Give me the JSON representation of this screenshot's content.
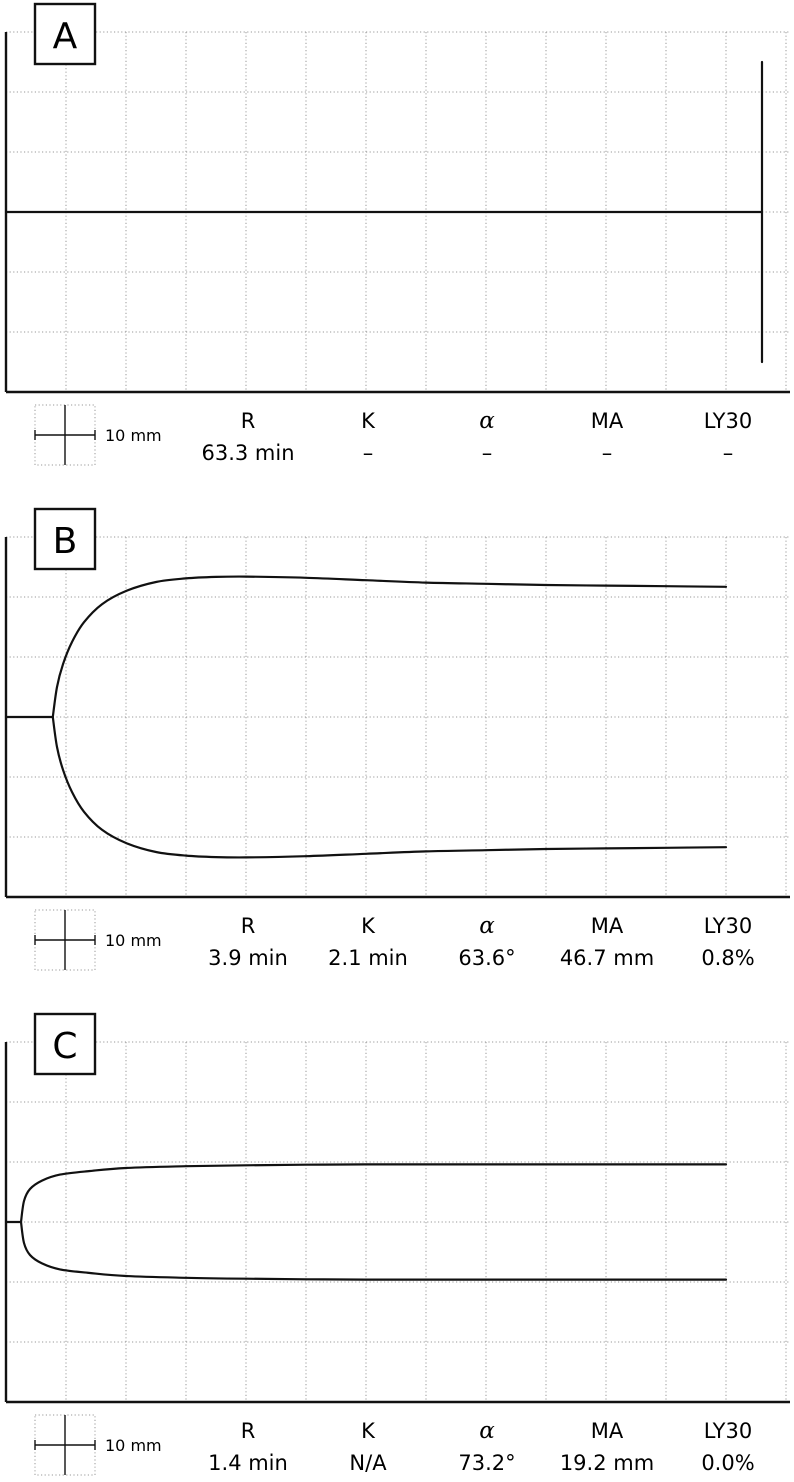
{
  "metric_headers": [
    "R",
    "K",
    "α",
    "MA",
    "LY30"
  ],
  "scale_label": "10 mm",
  "panels": [
    {
      "letter": "A",
      "metrics": [
        "63.3 min",
        "–",
        "–",
        "–",
        "–"
      ]
    },
    {
      "letter": "B",
      "metrics": [
        "3.9 min",
        "2.1 min",
        "63.6°",
        "46.7 mm",
        "0.8%"
      ]
    },
    {
      "letter": "C",
      "metrics": [
        "1.4 min",
        "N/A",
        "73.2°",
        "19.2 mm",
        "0.0%"
      ]
    }
  ],
  "chart_data": [
    {
      "type": "line",
      "panel": "A",
      "title": "",
      "xlabel": "",
      "ylabel": "",
      "x_unit": "mm",
      "y_unit": "mm",
      "xlim": [
        0,
        130
      ],
      "ylim": [
        -30,
        30
      ],
      "grid": true,
      "grid_spacing": 10,
      "series": [
        {
          "x": [
            0,
            126
          ],
          "y": [
            0,
            0
          ]
        },
        {
          "x": [
            126,
            126
          ],
          "y": [
            -25,
            25
          ]
        }
      ]
    },
    {
      "type": "line",
      "panel": "B",
      "title": "",
      "xlabel": "",
      "ylabel": "",
      "x_unit": "mm",
      "y_unit": "mm",
      "xlim": [
        0,
        130
      ],
      "ylim": [
        -30,
        30
      ],
      "grid": true,
      "grid_spacing": 10,
      "stem": {
        "x": [
          0,
          7.8
        ],
        "y": [
          0,
          0
        ]
      },
      "series": [
        {
          "x": [
            7.8,
            8.5,
            9.5,
            11,
            13,
            16,
            20,
            25,
            30,
            35,
            40,
            50,
            60,
            70,
            80,
            90,
            100,
            110,
            120
          ],
          "y": [
            0,
            5,
            8.8,
            12.5,
            15.8,
            18.8,
            21,
            22.5,
            23.1,
            23.35,
            23.4,
            23.2,
            22.8,
            22.4,
            22.2,
            22,
            21.9,
            21.8,
            21.7
          ]
        },
        {
          "x": [
            7.8,
            8.5,
            9.5,
            11,
            13,
            16,
            20,
            25,
            30,
            35,
            40,
            50,
            60,
            70,
            80,
            90,
            100,
            110,
            120
          ],
          "y": [
            0,
            -5,
            -8.8,
            -12.5,
            -15.8,
            -18.8,
            -21,
            -22.5,
            -23.1,
            -23.35,
            -23.4,
            -23.2,
            -22.8,
            -22.4,
            -22.2,
            -22,
            -21.9,
            -21.8,
            -21.7
          ]
        }
      ]
    },
    {
      "type": "line",
      "panel": "C",
      "title": "",
      "xlabel": "",
      "ylabel": "",
      "x_unit": "mm",
      "y_unit": "mm",
      "xlim": [
        0,
        130
      ],
      "ylim": [
        -30,
        30
      ],
      "grid": true,
      "grid_spacing": 10,
      "stem": {
        "x": [
          0,
          2.5
        ],
        "y": [
          0,
          0
        ]
      },
      "series": [
        {
          "x": [
            2.5,
            3,
            4,
            6,
            9,
            14,
            20,
            30,
            40,
            50,
            60,
            80,
            100,
            120
          ],
          "y": [
            0,
            3.5,
            5.5,
            6.9,
            7.9,
            8.5,
            9,
            9.3,
            9.45,
            9.55,
            9.6,
            9.6,
            9.6,
            9.6
          ]
        },
        {
          "x": [
            2.5,
            3,
            4,
            6,
            9,
            14,
            20,
            30,
            40,
            50,
            60,
            80,
            100,
            120
          ],
          "y": [
            0,
            -3.5,
            -5.5,
            -6.9,
            -7.9,
            -8.5,
            -9,
            -9.3,
            -9.45,
            -9.55,
            -9.6,
            -9.6,
            -9.6,
            -9.6
          ]
        }
      ]
    }
  ]
}
